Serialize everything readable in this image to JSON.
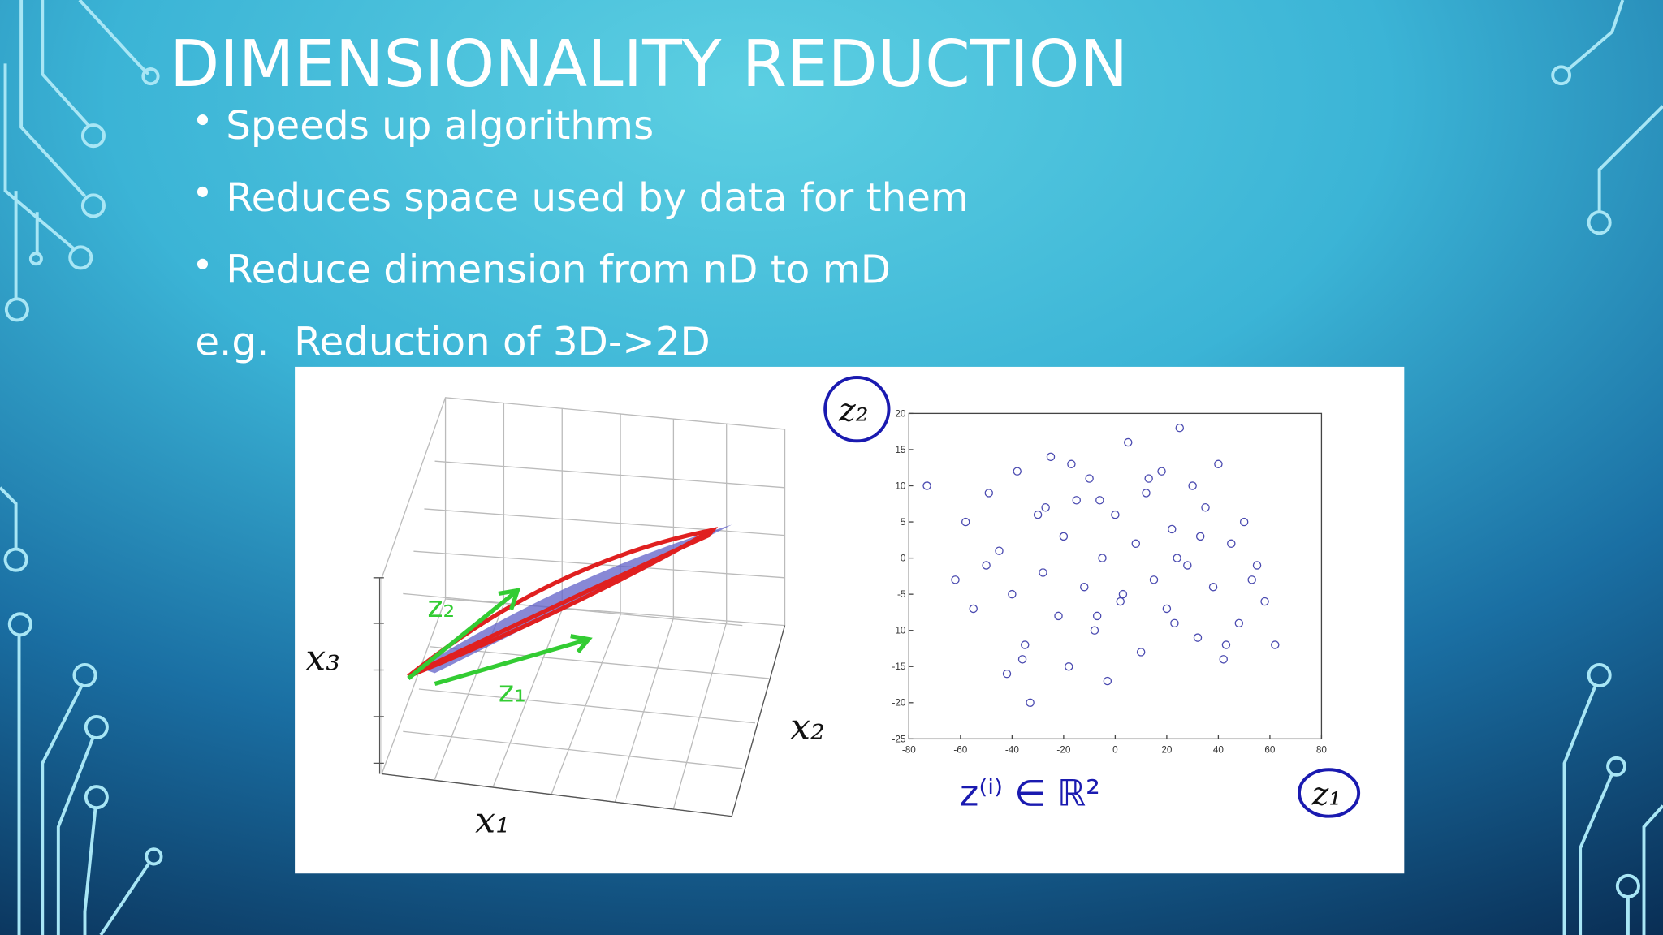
{
  "slide": {
    "title": "DIMENSIONALITY REDUCTION",
    "bullets": [
      "Speeds up algorithms",
      "Reduces space used by data for them",
      "Reduce dimension from nD to mD"
    ],
    "example": "e.g.  Reduction of 3D->2D"
  },
  "figure": {
    "x3_label": "x₃",
    "x1_label": "x₁",
    "x2_label": "x₂",
    "z2_hand": "z₂",
    "z1_hand": "z₁",
    "z2_axis": "z₂",
    "z1_axis": "z₁",
    "note": "z⁽ⁱ⁾ ∈ ℝ²"
  },
  "chart_data": {
    "type": "scatter",
    "color": "#4a4ab0",
    "xlim": [
      -80,
      80
    ],
    "ylim": [
      -25,
      20
    ],
    "xticks": [
      -80,
      -60,
      -40,
      -20,
      0,
      20,
      40,
      60,
      80
    ],
    "yticks": [
      20,
      15,
      10,
      5,
      0,
      -5,
      -10,
      -15,
      -20,
      -25
    ],
    "x": [
      -73,
      -58,
      -62,
      -49,
      -45,
      -40,
      -38,
      -35,
      -30,
      -28,
      -25,
      -22,
      -20,
      -18,
      -15,
      -12,
      -10,
      -8,
      -5,
      -3,
      0,
      2,
      5,
      8,
      10,
      12,
      15,
      18,
      20,
      22,
      25,
      28,
      30,
      32,
      35,
      38,
      40,
      42,
      45,
      48,
      50,
      55,
      58,
      62,
      -55,
      -50,
      -42,
      -33,
      -27,
      -17,
      -7,
      3,
      13,
      23,
      33,
      43,
      53,
      -36,
      -6,
      24
    ],
    "values": [
      10,
      5,
      -3,
      9,
      1,
      -5,
      12,
      -12,
      6,
      -2,
      14,
      -8,
      3,
      -15,
      8,
      -4,
      11,
      -10,
      0,
      -17,
      6,
      -6,
      16,
      2,
      -13,
      9,
      -3,
      12,
      -7,
      4,
      18,
      -1,
      10,
      -11,
      7,
      -4,
      13,
      -14,
      2,
      -9,
      5,
      -1,
      -6,
      -12,
      -7,
      -1,
      -16,
      -20,
      7,
      13,
      -8,
      -5,
      11,
      -9,
      3,
      -12,
      -3,
      -14,
      8,
      0
    ]
  }
}
